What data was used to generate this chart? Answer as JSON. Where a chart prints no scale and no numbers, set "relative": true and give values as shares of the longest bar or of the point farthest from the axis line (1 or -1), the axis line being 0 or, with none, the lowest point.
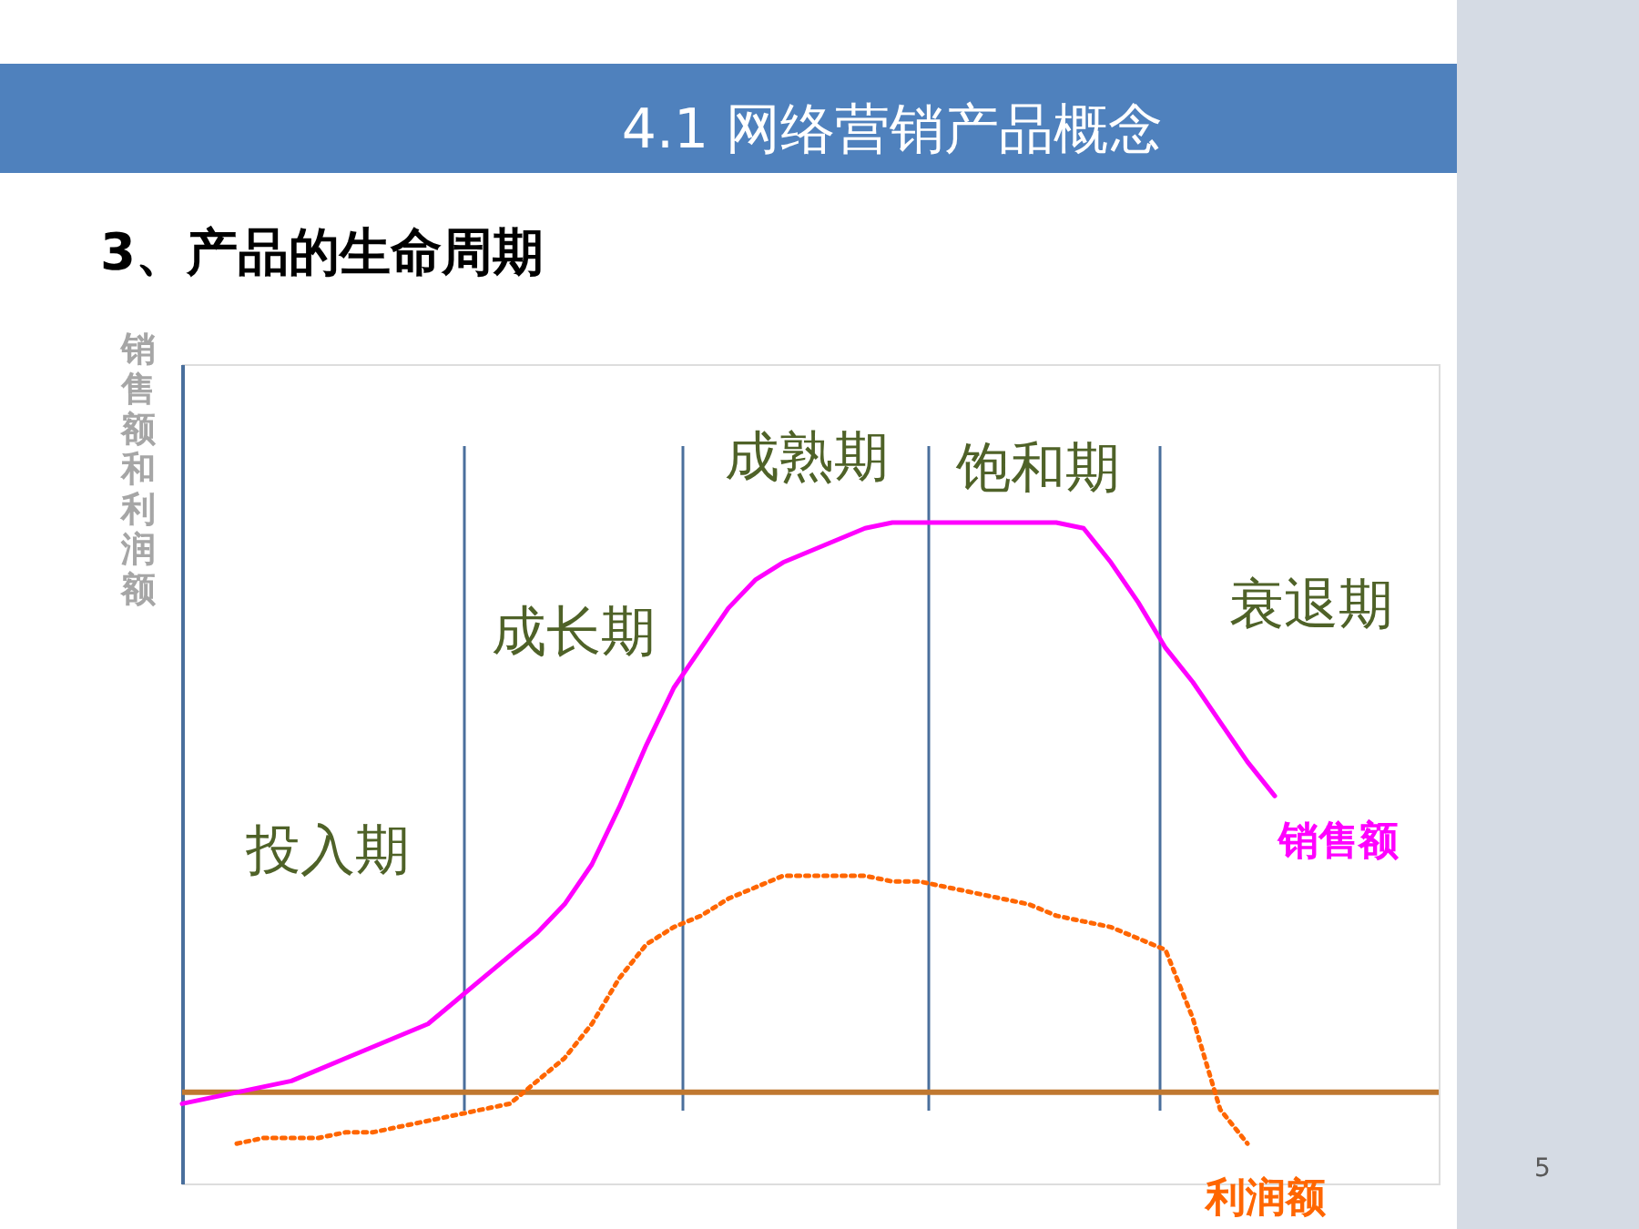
{
  "chart_data": {
    "type": "line",
    "title": "4.1 网络营销产品概念",
    "subtitle": "3、产品的生命周期",
    "ylabel": "销售额和利润额",
    "relative": true,
    "grid": false,
    "legend": false,
    "marker": "none",
    "categories": [
      null,
      null,
      null,
      null,
      null,
      null,
      null,
      null,
      null,
      null,
      null,
      null,
      null,
      null,
      null,
      null,
      null,
      null,
      null,
      null,
      null,
      null,
      null,
      null,
      null,
      null,
      null,
      null,
      null,
      null,
      null,
      null,
      null,
      null,
      null,
      null,
      null,
      null,
      null,
      null,
      null
    ],
    "series": [
      {
        "name": "销售额",
        "color": "#ff00ff",
        "line_style": "solid",
        "values": [
          -0.02,
          -0.01,
          0.0,
          0.01,
          0.02,
          0.04,
          0.06,
          0.08,
          0.1,
          0.12,
          0.16,
          0.2,
          0.24,
          0.28,
          0.33,
          0.4,
          0.5,
          0.61,
          0.71,
          0.78,
          0.85,
          0.9,
          0.93,
          0.95,
          0.97,
          0.99,
          1.0,
          1.0,
          1.0,
          1.0,
          1.0,
          1.0,
          1.0,
          0.99,
          0.93,
          0.86,
          0.78,
          0.72,
          0.65,
          0.58,
          0.52
        ]
      },
      {
        "name": "利润额",
        "color": "#ff6600",
        "line_style": "dotted",
        "values": [
          null,
          null,
          -0.09,
          -0.08,
          -0.08,
          -0.08,
          -0.07,
          -0.07,
          -0.06,
          -0.05,
          -0.04,
          -0.03,
          -0.02,
          0.02,
          0.06,
          0.12,
          0.2,
          0.26,
          0.29,
          0.31,
          0.34,
          0.36,
          0.38,
          0.38,
          0.38,
          0.38,
          0.37,
          0.37,
          0.36,
          0.35,
          0.34,
          0.33,
          0.31,
          0.3,
          0.29,
          0.27,
          0.25,
          0.13,
          -0.03,
          -0.09,
          null
        ]
      }
    ],
    "ref_lines": [
      {
        "axis": "y",
        "value": 0,
        "color": "#c07830"
      }
    ],
    "annotations": [
      "投入期",
      "成长期",
      "成熟期",
      "饱和期",
      "衰退期",
      "5"
    ]
  }
}
